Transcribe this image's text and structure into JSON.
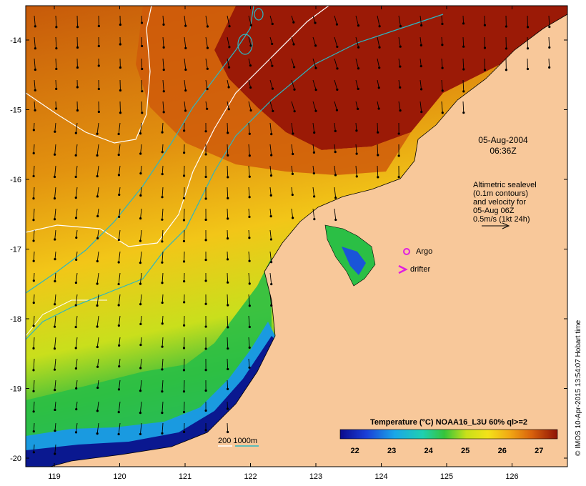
{
  "map": {
    "date_label": "05-Aug-2004",
    "time_label": "06:36Z",
    "altimetry_lines": [
      "Altimetric sealevel",
      "(0.1m contours)",
      "and velocity for",
      "05-Aug 06Z",
      "0.5m/s (1kt 24h)"
    ],
    "argo_label": "Argo",
    "drifter_label": "drifter",
    "depth_label": "200  1000m",
    "credit": "© IMOS 10-Apr-2015 13:54:07 Hobart time",
    "x_ticks": [
      "119",
      "120",
      "121",
      "122",
      "123",
      "124",
      "125",
      "126"
    ],
    "y_ticks": [
      "-14",
      "-15",
      "-16",
      "-17",
      "-18",
      "-19",
      "-20"
    ],
    "colorbar": {
      "title": "Temperature (°C) NOAA16_L3U 60% ql>=2",
      "ticks": [
        "22",
        "23",
        "24",
        "25",
        "26",
        "27"
      ],
      "range": [
        21.6,
        27.5
      ]
    },
    "colors": {
      "land": "#f8c89a",
      "hot": "#9b1a06",
      "warm": "#d96a0b",
      "mid": "#f0b114",
      "cool": "#2fb84a",
      "cold": "#0a1a9a",
      "contour_white": "#ffffff",
      "contour_cyan": "#2bb7c3",
      "marker_magenta": "#e020e0"
    }
  }
}
